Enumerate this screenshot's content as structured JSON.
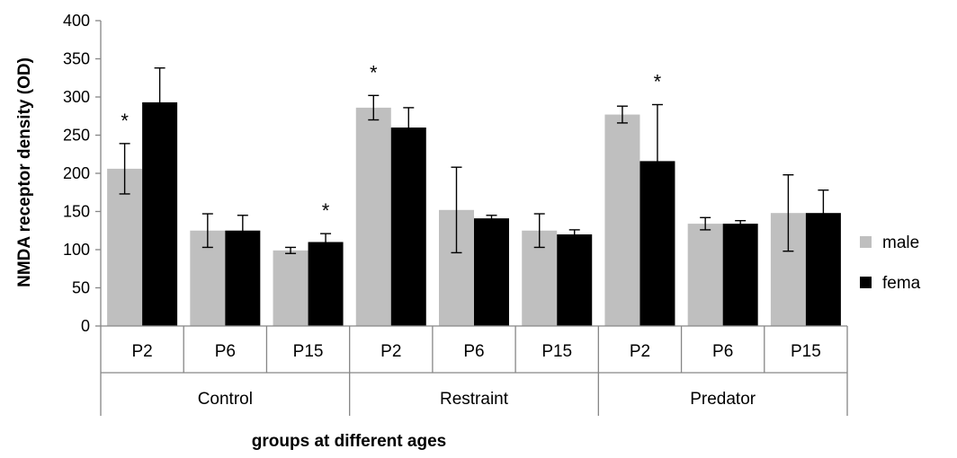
{
  "chart_data": {
    "type": "bar",
    "xlabel": "groups at different ages",
    "ylabel": "NMDA receptor density (OD)",
    "ylim": [
      0,
      400
    ],
    "yticks": [
      0,
      50,
      100,
      150,
      200,
      250,
      300,
      350,
      400
    ],
    "groups": [
      {
        "label": "Control",
        "categories": [
          "P2",
          "P6",
          "P15"
        ]
      },
      {
        "label": "Restraint",
        "categories": [
          "P2",
          "P6",
          "P15"
        ]
      },
      {
        "label": "Predator",
        "categories": [
          "P2",
          "P6",
          "P15"
        ]
      }
    ],
    "categories": [
      "P2",
      "P6",
      "P15",
      "P2",
      "P6",
      "P15",
      "P2",
      "P6",
      "P15"
    ],
    "series": [
      {
        "name": "male",
        "color": "#bfbfbf",
        "values": [
          206,
          125,
          99,
          286,
          152,
          125,
          277,
          134,
          148
        ],
        "errors": [
          33,
          22,
          4,
          16,
          56,
          22,
          11,
          8,
          50
        ]
      },
      {
        "name": "fema",
        "color": "#000000",
        "values": [
          293,
          125,
          110,
          260,
          141,
          120,
          216,
          134,
          148
        ],
        "errors": [
          45,
          20,
          11,
          26,
          4,
          6,
          74,
          4,
          30
        ]
      }
    ],
    "annotations": [
      {
        "text": "*",
        "category_index": 0,
        "series_index": 0
      },
      {
        "text": "*",
        "category_index": 2,
        "series_index": 1
      },
      {
        "text": "*",
        "category_index": 3,
        "series_index": 0
      },
      {
        "text": "*",
        "category_index": 6,
        "series_index": 1
      }
    ],
    "legend": "right",
    "grid": false
  }
}
